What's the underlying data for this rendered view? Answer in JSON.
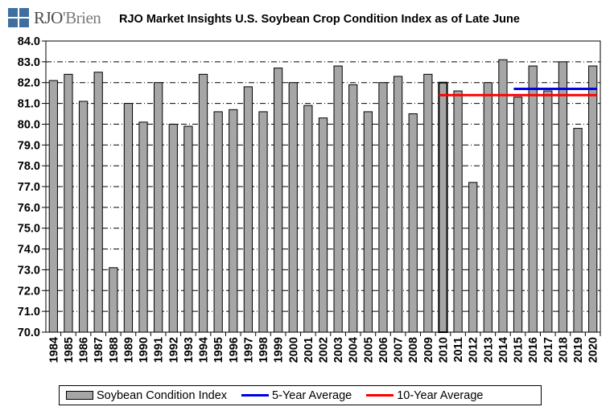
{
  "logo": {
    "text_a": "RJO",
    "text_b": "'Brien",
    "mark_color": "#3f6f9f"
  },
  "chart_data": {
    "type": "bar",
    "title": "RJO Market Insights U.S. Soybean Crop Condition Index as of Late June",
    "categories": [
      "1984",
      "1985",
      "1986",
      "1987",
      "1988",
      "1989",
      "1990",
      "1991",
      "1992",
      "1993",
      "1994",
      "1995",
      "1996",
      "1997",
      "1998",
      "1999",
      "2000",
      "2001",
      "2002",
      "2003",
      "2004",
      "2005",
      "2006",
      "2007",
      "2008",
      "2009",
      "2010",
      "2011",
      "2012",
      "2013",
      "2014",
      "2015",
      "2016",
      "2017",
      "2018",
      "2019",
      "2020"
    ],
    "series": [
      {
        "name": "Soybean Condition Index",
        "color": "#a6a6a6",
        "values": [
          82.1,
          82.4,
          81.1,
          82.5,
          73.1,
          81.0,
          80.1,
          82.0,
          80.0,
          79.9,
          82.4,
          80.6,
          80.7,
          81.8,
          80.6,
          82.7,
          82.0,
          80.9,
          80.3,
          82.8,
          81.9,
          80.6,
          82.0,
          82.3,
          80.5,
          82.4,
          82.0,
          81.6,
          77.2,
          82.0,
          83.1,
          81.3,
          82.8,
          81.6,
          83.0,
          79.8,
          82.8
        ]
      }
    ],
    "averages": [
      {
        "name": "5-Year Average",
        "color": "#0000ee",
        "value": 81.7,
        "from": "2015",
        "to": "2020"
      },
      {
        "name": "10-Year Average",
        "color": "#ff0000",
        "value": 81.4,
        "from": "2010",
        "to": "2020"
      }
    ],
    "y_ticks": [
      "70.0",
      "71.0",
      "72.0",
      "73.0",
      "74.0",
      "75.0",
      "76.0",
      "77.0",
      "78.0",
      "79.0",
      "80.0",
      "81.0",
      "82.0",
      "83.0",
      "84.0"
    ],
    "ylim": [
      70,
      84
    ],
    "grid": true,
    "legend_position": "bottom",
    "highlight_category": "2010"
  }
}
